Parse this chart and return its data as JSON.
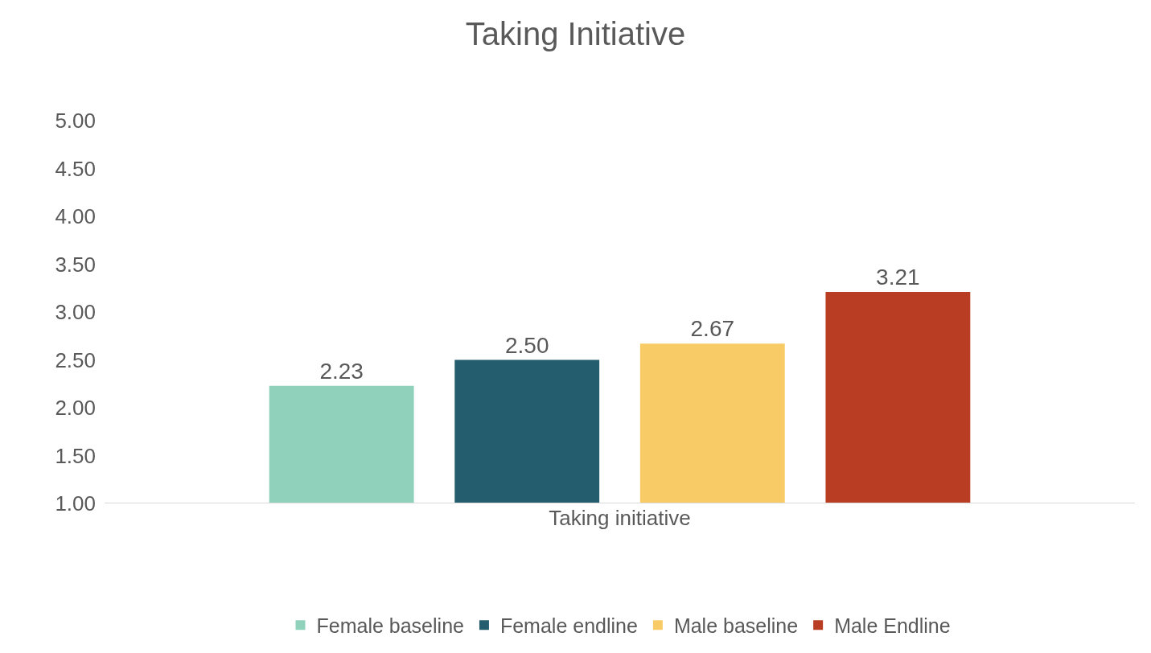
{
  "chart_data": {
    "type": "bar",
    "title": "Taking Initiative",
    "categories": [
      "Taking initiative"
    ],
    "series": [
      {
        "name": "Female baseline",
        "color": "#8fd1bb",
        "values": [
          2.23
        ],
        "value_labels": [
          "2.23"
        ]
      },
      {
        "name": "Female endline",
        "color": "#245e6e",
        "values": [
          2.5
        ],
        "value_labels": [
          "2.50"
        ]
      },
      {
        "name": "Male baseline",
        "color": "#f8cb66",
        "values": [
          2.67
        ],
        "value_labels": [
          "2.67"
        ]
      },
      {
        "name": "Male Endline",
        "color": "#b83d22",
        "values": [
          3.21
        ],
        "value_labels": [
          "3.21"
        ]
      }
    ],
    "ylim": [
      1,
      5
    ],
    "yticks": [
      {
        "value": 1,
        "label": "1.00"
      },
      {
        "value": 1.5,
        "label": "1.50"
      },
      {
        "value": 2,
        "label": "2.00"
      },
      {
        "value": 2.5,
        "label": "2.50"
      },
      {
        "value": 3,
        "label": "3.00"
      },
      {
        "value": 3.5,
        "label": "3.50"
      },
      {
        "value": 4,
        "label": "4.00"
      },
      {
        "value": 4.5,
        "label": "4.50"
      },
      {
        "value": 5,
        "label": "5.00"
      }
    ],
    "legend": "bottom"
  }
}
